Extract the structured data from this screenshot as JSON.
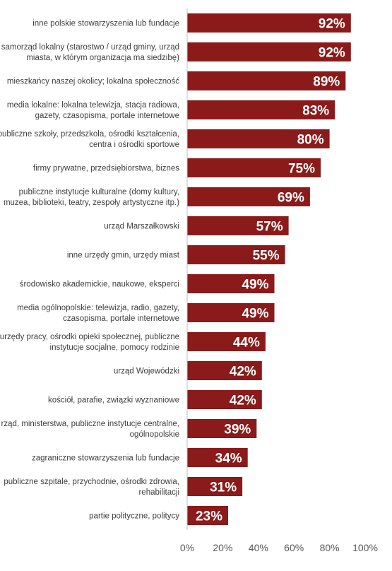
{
  "chart_data": {
    "type": "bar",
    "orientation": "horizontal",
    "bar_color": "#8B1A1A",
    "categories": [
      [
        "inne polskie stowarzyszenia lub fundacje"
      ],
      [
        "samorząd lokalny (starostwo / urząd gminy, urząd",
        "miasta, w którym organizacja ma siedzibę)"
      ],
      [
        "mieszkańcy naszej okolicy; lokalna społeczność"
      ],
      [
        "media lokalne: lokalna telewizja, stacja radiowa,",
        "gazety, czasopisma, portale internetowe"
      ],
      [
        "publiczne szkoły, przedszkola, ośrodki kształcenia,",
        "centra i ośrodki sportowe"
      ],
      [
        "firmy prywatne, przedsiębiorstwa, biznes"
      ],
      [
        "publiczne instytucje kulturalne (domy kultury,",
        "muzea, biblioteki, teatry, zespoły artystyczne itp.)"
      ],
      [
        "urząd Marszałkowski"
      ],
      [
        "inne urzędy gmin, urzędy miast"
      ],
      [
        "środowisko akademickie, naukowe, eksperci"
      ],
      [
        "media ogólnopolskie: telewizja, radio, gazety,",
        "czasopisma, portale internetowe"
      ],
      [
        "urzędy pracy, ośrodki opieki społecznej, publiczne",
        "instytucje socjalne, pomocy rodzinie"
      ],
      [
        "urząd Wojewódzki"
      ],
      [
        "kościół, parafie, związki wyznaniowe"
      ],
      [
        "rząd, ministerstwa, publiczne instytucje centralne,",
        "ogólnopolskie"
      ],
      [
        "zagraniczne stowarzyszenia lub fundacje"
      ],
      [
        "publiczne szpitale, przychodnie, ośrodki zdrowia,",
        "rehabilitacji"
      ],
      [
        "partie polityczne, politycy"
      ]
    ],
    "values": [
      92,
      92,
      89,
      83,
      80,
      75,
      69,
      57,
      55,
      49,
      49,
      44,
      42,
      42,
      39,
      34,
      31,
      23
    ],
    "value_labels": [
      "92%",
      "92%",
      "89%",
      "83%",
      "80%",
      "75%",
      "69%",
      "57%",
      "55%",
      "49%",
      "49%",
      "44%",
      "42%",
      "42%",
      "39%",
      "34%",
      "31%",
      "23%"
    ],
    "xlim": [
      0,
      100
    ],
    "x_ticks": [
      0,
      20,
      40,
      60,
      80,
      100
    ],
    "x_tick_labels": [
      "0%",
      "20%",
      "40%",
      "60%",
      "80%",
      "100%"
    ],
    "grid": false,
    "legend": "none"
  }
}
